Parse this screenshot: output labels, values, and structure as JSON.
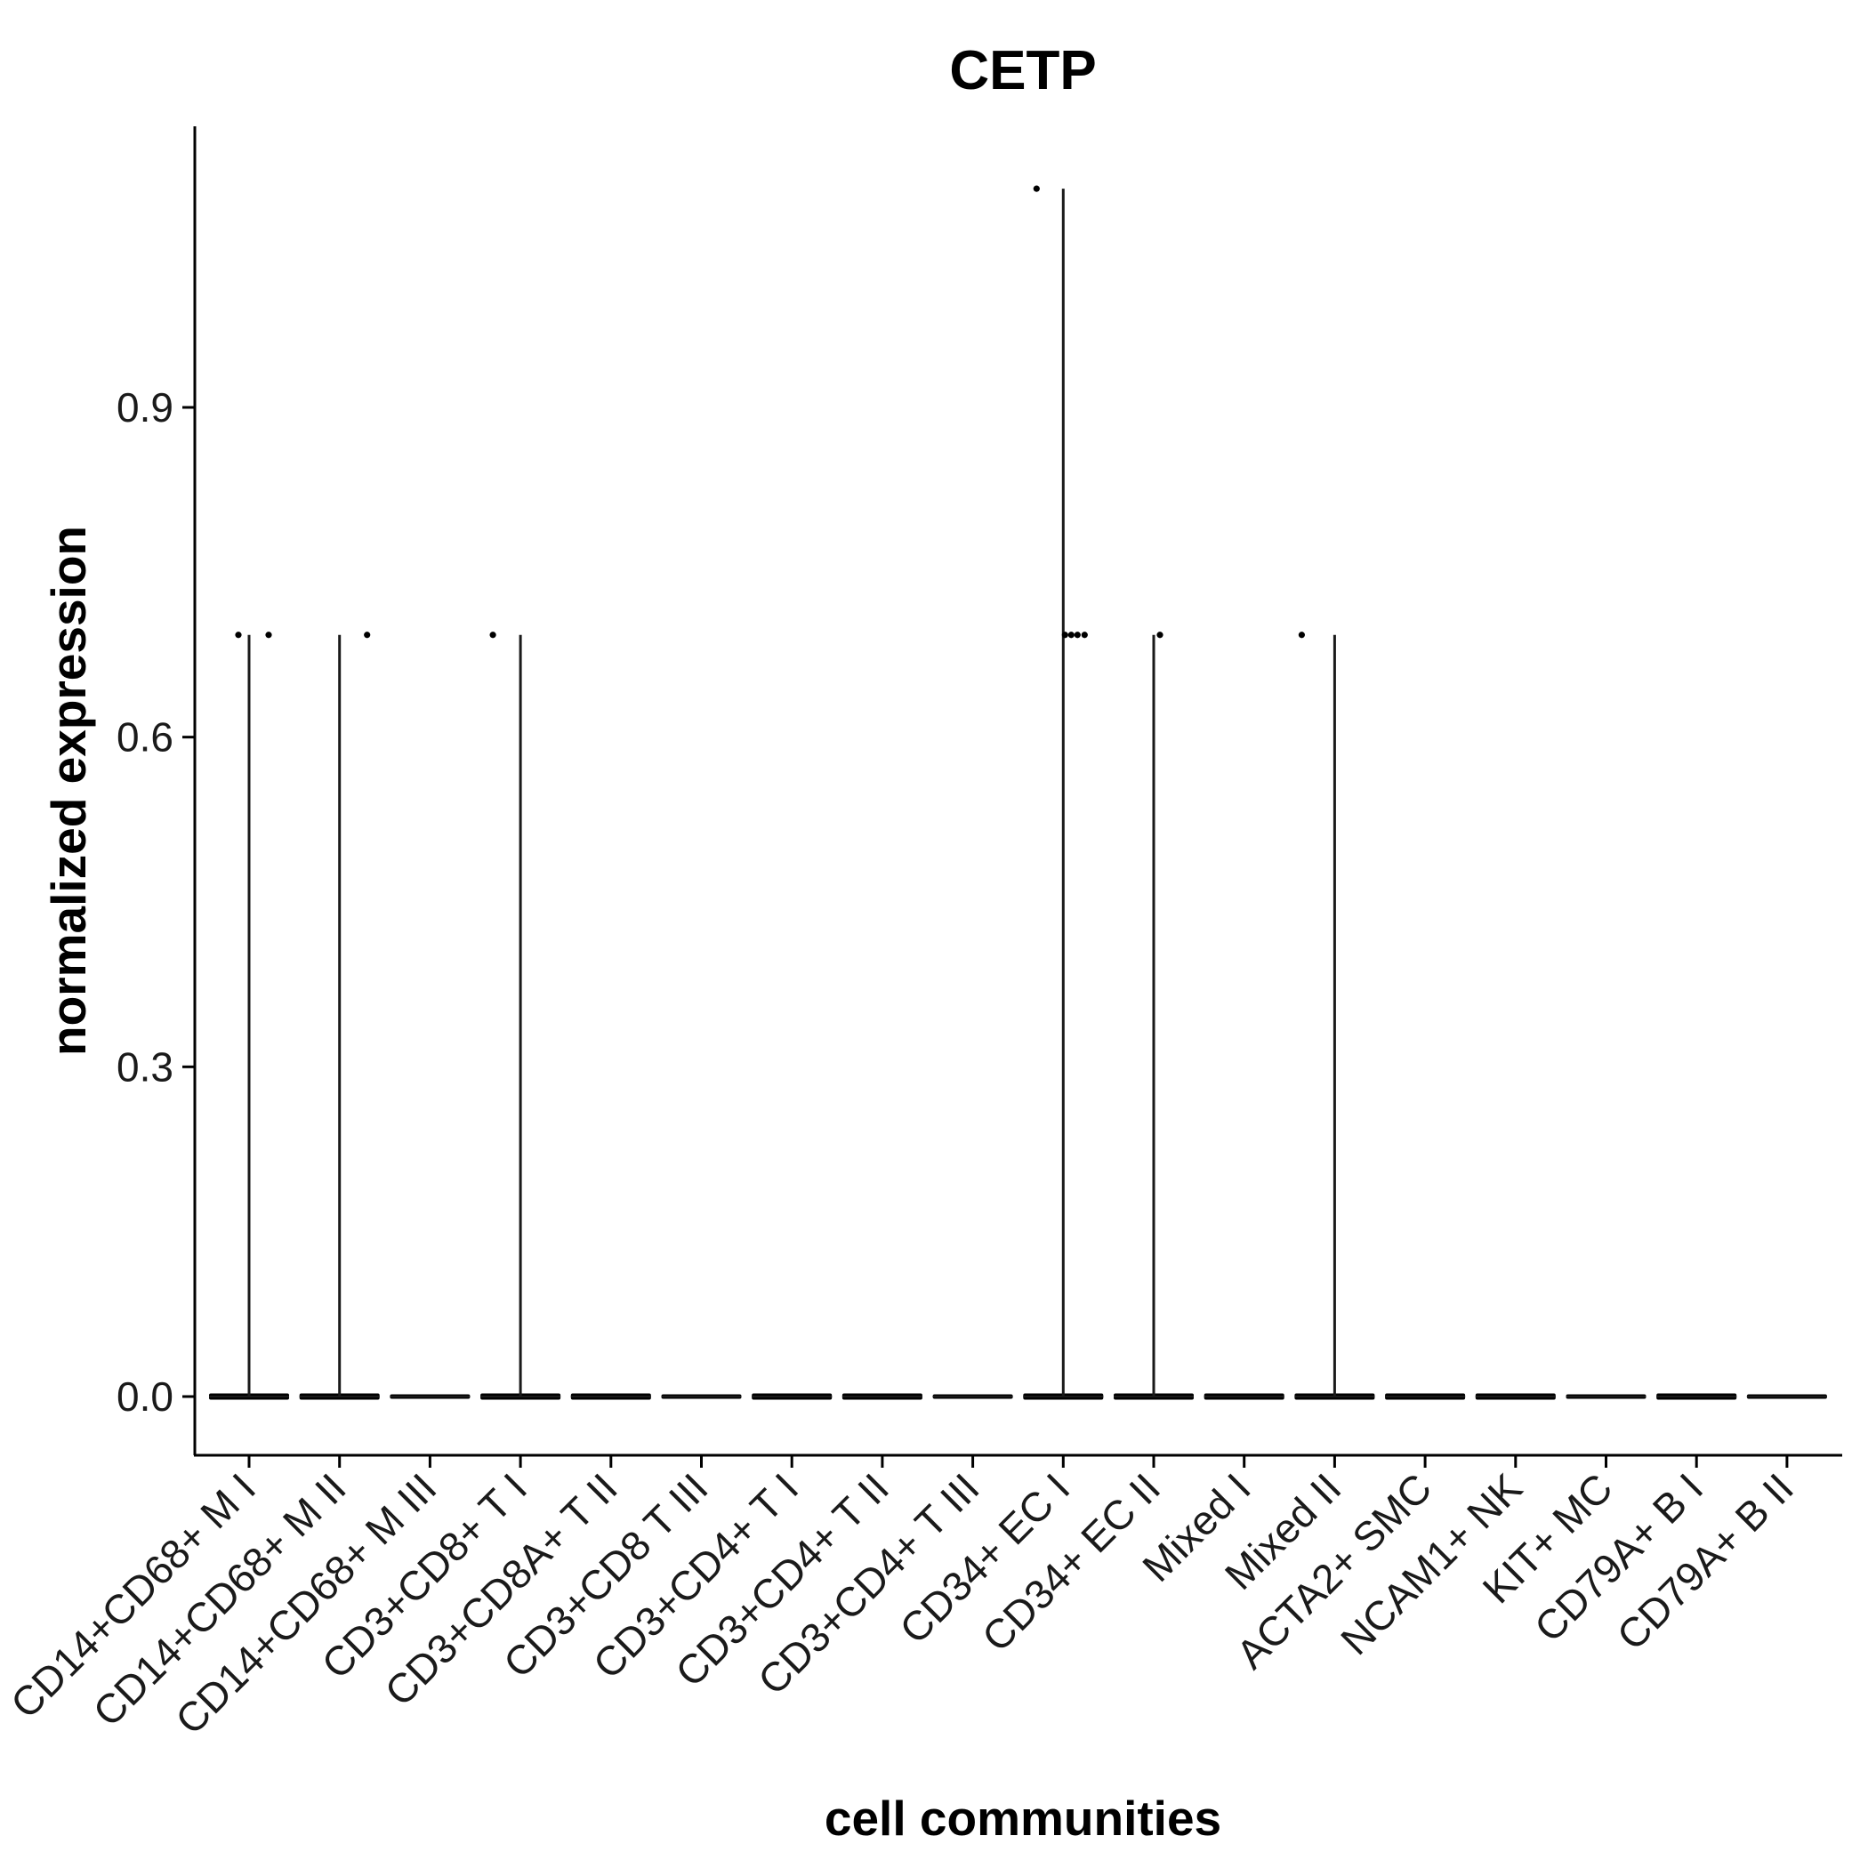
{
  "chart_data": {
    "type": "violin",
    "title": "CETP",
    "xlabel": "cell communities",
    "ylabel": "normalized expression",
    "ylim": [
      -0.09,
      1.155
    ],
    "yticks": [
      0.0,
      0.3,
      0.6,
      0.9
    ],
    "ytick_labels": [
      "0.0",
      "0.3",
      "0.6",
      "0.9"
    ],
    "grid": false,
    "legend": "none",
    "categories": [
      "CD14+CD68+ M I",
      "CD14+CD68+ M II",
      "CD14+CD68+ M III",
      "CD3+CD8+ T I",
      "CD3+CD8A+ T II",
      "CD3+CD8 T III",
      "CD3+CD4+ T I",
      "CD3+CD4+ T II",
      "CD3+CD4+ T III",
      "CD34+ EC I",
      "CD34+ EC II",
      "Mixed I",
      "Mixed II",
      "ACTA2+ SMC",
      "NCAM1+ NK",
      "KIT+ MC",
      "CD79A+ B I",
      "CD79A+ B II"
    ],
    "max_values": [
      0.693,
      0.693,
      0,
      0.693,
      0,
      0,
      0,
      0,
      0,
      1.099,
      0.693,
      0,
      0.693,
      0,
      0,
      0,
      0,
      0
    ],
    "points": [
      {
        "category": "CD14+CD68+ M I",
        "y": 0.693
      },
      {
        "category": "CD14+CD68+ M I",
        "y": 0.693
      },
      {
        "category": "CD14+CD68+ M II",
        "y": 0.693
      },
      {
        "category": "CD3+CD8+ T I",
        "y": 0.693
      },
      {
        "category": "CD34+ EC I",
        "y": 1.099
      },
      {
        "category": "CD34+ EC I",
        "y": 0.693
      },
      {
        "category": "CD34+ EC I",
        "y": 0.693
      },
      {
        "category": "CD34+ EC I",
        "y": 0.693
      },
      {
        "category": "CD34+ EC I",
        "y": 0.693
      },
      {
        "category": "CD34+ EC II",
        "y": 0.693
      },
      {
        "category": "Mixed II",
        "y": 0.693
      }
    ]
  }
}
